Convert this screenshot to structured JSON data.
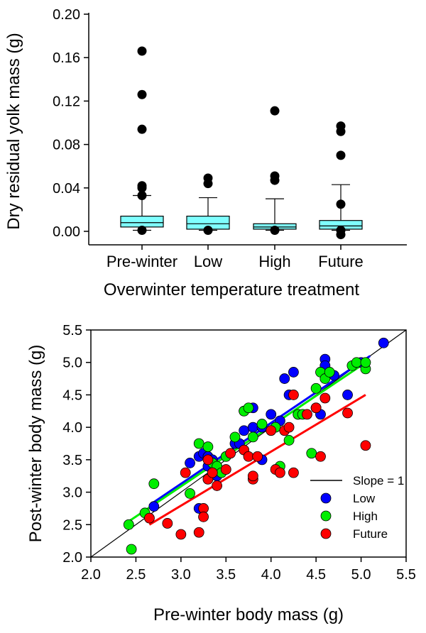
{
  "chart_data": [
    {
      "type": "box",
      "xlabel": "Overwinter temperature treatment",
      "ylabel": "Dry residual yolk mass (g)",
      "ylim": [
        -0.01,
        0.2
      ],
      "yticks": [
        "0.00",
        "0.04",
        "0.08",
        "0.12",
        "0.16",
        "0.20"
      ],
      "categories": [
        "Pre-winter",
        "Low",
        "High",
        "Future"
      ],
      "box_color": "#7fffff",
      "boxes": [
        {
          "q1": 0.004,
          "median": 0.008,
          "q3": 0.014,
          "whisker_low": 0.001,
          "whisker_high": 0.033,
          "outliers": [
            0.166,
            0.126,
            0.094,
            0.042,
            0.04,
            0.033,
            0.001
          ]
        },
        {
          "q1": 0.002,
          "median": 0.007,
          "q3": 0.014,
          "whisker_low": 0.001,
          "whisker_high": 0.031,
          "outliers": [
            0.049,
            0.044,
            0.001
          ]
        },
        {
          "q1": 0.002,
          "median": 0.004,
          "q3": 0.007,
          "whisker_low": 0.001,
          "whisker_high": 0.03,
          "outliers": [
            0.111,
            0.051,
            0.047,
            0.001
          ]
        },
        {
          "q1": 0.002,
          "median": 0.005,
          "q3": 0.01,
          "whisker_low": 0.001,
          "whisker_high": 0.043,
          "outliers": [
            0.097,
            0.092,
            0.07,
            0.025,
            0.001,
            -0.003
          ]
        }
      ]
    },
    {
      "type": "scatter",
      "xlabel": "Pre-winter body mass (g)",
      "ylabel": "Post-winter body mass (g)",
      "xlim": [
        2.0,
        5.5
      ],
      "ylim": [
        2.0,
        5.5
      ],
      "xticks": [
        "2.0",
        "2.5",
        "3.0",
        "3.5",
        "4.0",
        "4.5",
        "5.0",
        "5.5"
      ],
      "yticks": [
        "2.0",
        "2.5",
        "3.0",
        "3.5",
        "4.0",
        "4.5",
        "5.0",
        "5.5"
      ],
      "legend_placement": "bottom-right",
      "reference_line": {
        "name": "Slope = 1",
        "color": "#000000",
        "x": [
          2.0,
          5.5
        ],
        "y": [
          2.0,
          5.5
        ]
      },
      "series": [
        {
          "name": "Low",
          "color": "#0000ff",
          "fit": {
            "x": [
              2.65,
              5.1
            ],
            "y": [
              2.8,
              5.1
            ]
          },
          "points": [
            [
              2.7,
              2.78
            ],
            [
              3.1,
              3.45
            ],
            [
              3.2,
              3.55
            ],
            [
              3.25,
              3.6
            ],
            [
              3.3,
              3.55
            ],
            [
              3.3,
              3.4
            ],
            [
              3.35,
              3.5
            ],
            [
              3.4,
              3.4
            ],
            [
              3.3,
              3.2
            ],
            [
              3.4,
              3.25
            ],
            [
              3.2,
              2.75
            ],
            [
              3.5,
              3.55
            ],
            [
              3.6,
              3.75
            ],
            [
              3.65,
              3.75
            ],
            [
              3.7,
              3.95
            ],
            [
              3.7,
              4.25
            ],
            [
              3.8,
              4.3
            ],
            [
              3.8,
              4.0
            ],
            [
              3.9,
              4.0
            ],
            [
              3.9,
              3.5
            ],
            [
              4.0,
              4.2
            ],
            [
              4.1,
              4.1
            ],
            [
              4.15,
              4.75
            ],
            [
              4.2,
              4.5
            ],
            [
              4.25,
              4.85
            ],
            [
              4.3,
              4.2
            ],
            [
              4.5,
              4.3
            ],
            [
              4.55,
              4.2
            ],
            [
              4.6,
              5.05
            ],
            [
              4.6,
              4.95
            ],
            [
              4.7,
              4.8
            ],
            [
              4.85,
              4.5
            ],
            [
              5.0,
              5.0
            ],
            [
              5.25,
              5.3
            ]
          ]
        },
        {
          "name": "High",
          "color": "#00ee00",
          "fit": {
            "x": [
              2.42,
              5.0
            ],
            "y": [
              2.55,
              4.95
            ]
          },
          "points": [
            [
              2.42,
              2.5
            ],
            [
              2.45,
              2.12
            ],
            [
              2.6,
              2.68
            ],
            [
              2.7,
              3.13
            ],
            [
              3.1,
              2.98
            ],
            [
              3.2,
              3.75
            ],
            [
              3.3,
              3.7
            ],
            [
              3.35,
              3.45
            ],
            [
              3.4,
              3.4
            ],
            [
              3.45,
              3.3
            ],
            [
              3.5,
              3.55
            ],
            [
              3.6,
              3.85
            ],
            [
              3.7,
              4.25
            ],
            [
              3.75,
              4.3
            ],
            [
              3.8,
              3.85
            ],
            [
              3.9,
              4.05
            ],
            [
              4.05,
              4.0
            ],
            [
              4.1,
              3.4
            ],
            [
              4.2,
              3.8
            ],
            [
              4.3,
              4.2
            ],
            [
              4.35,
              4.2
            ],
            [
              4.45,
              3.6
            ],
            [
              4.5,
              4.6
            ],
            [
              4.55,
              4.85
            ],
            [
              4.6,
              4.75
            ],
            [
              4.65,
              4.85
            ],
            [
              4.9,
              4.95
            ],
            [
              4.95,
              5.0
            ],
            [
              5.05,
              4.9
            ],
            [
              5.05,
              5.0
            ]
          ]
        },
        {
          "name": "Future",
          "color": "#ff0000",
          "fit": {
            "x": [
              2.65,
              5.05
            ],
            "y": [
              2.5,
              4.5
            ]
          },
          "points": [
            [
              2.65,
              2.6
            ],
            [
              2.85,
              2.52
            ],
            [
              3.0,
              2.35
            ],
            [
              3.05,
              3.3
            ],
            [
              3.2,
              2.38
            ],
            [
              3.25,
              2.75
            ],
            [
              3.25,
              2.62
            ],
            [
              3.3,
              3.5
            ],
            [
              3.3,
              3.2
            ],
            [
              3.35,
              3.3
            ],
            [
              3.4,
              3.1
            ],
            [
              3.5,
              3.35
            ],
            [
              3.55,
              3.6
            ],
            [
              3.7,
              3.65
            ],
            [
              3.75,
              3.55
            ],
            [
              3.8,
              3.2
            ],
            [
              3.8,
              3.25
            ],
            [
              3.85,
              3.55
            ],
            [
              4.0,
              3.95
            ],
            [
              4.05,
              3.35
            ],
            [
              4.1,
              3.3
            ],
            [
              4.15,
              3.95
            ],
            [
              4.2,
              4.0
            ],
            [
              4.25,
              4.5
            ],
            [
              4.25,
              3.3
            ],
            [
              4.4,
              4.2
            ],
            [
              4.5,
              4.3
            ],
            [
              4.55,
              3.55
            ],
            [
              4.6,
              4.45
            ],
            [
              4.85,
              4.22
            ],
            [
              5.05,
              3.72
            ]
          ]
        }
      ]
    }
  ]
}
